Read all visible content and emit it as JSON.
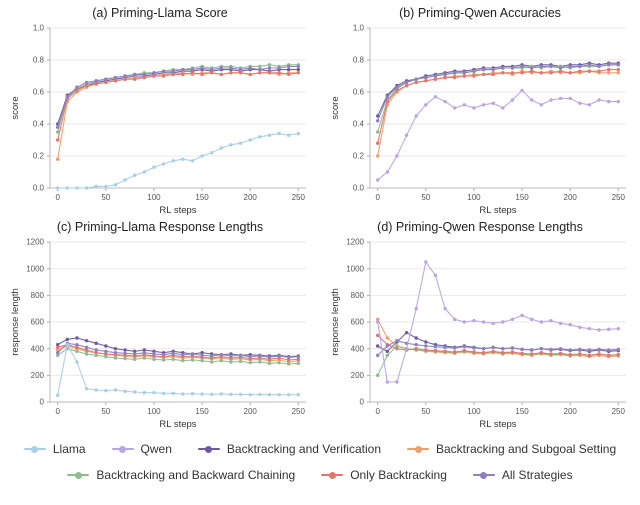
{
  "legend": {
    "items": [
      {
        "label": "Llama",
        "color": "#a8cfe8"
      },
      {
        "label": "Qwen",
        "color": "#b6a6e3"
      },
      {
        "label": "Backtracking and Verification",
        "color": "#6c5b9e"
      },
      {
        "label": "Backtracking and Subgoal Setting",
        "color": "#f09d6b"
      },
      {
        "label": "Backtracking and Backward Chaining",
        "color": "#8fbc8b"
      },
      {
        "label": "Only Backtracking",
        "color": "#e2766c"
      },
      {
        "label": "All Strategies",
        "color": "#8d80c0"
      }
    ]
  },
  "chart_data": [
    {
      "type": "line",
      "title": "(a) Priming-Llama Score",
      "xlabel": "RL steps",
      "ylabel": "score",
      "xlim": [
        -8,
        258
      ],
      "ylim": [
        0,
        1.0
      ],
      "xticks": [
        0,
        50,
        100,
        150,
        200,
        250
      ],
      "yticks": [
        0,
        0.2,
        0.4,
        0.6,
        0.8,
        1.0
      ],
      "ytick_labels": [
        "0.0",
        "0.2",
        "0.4",
        "0.6",
        "0.8",
        "1.0"
      ],
      "x": [
        0,
        10,
        20,
        30,
        40,
        50,
        60,
        70,
        80,
        90,
        100,
        110,
        120,
        130,
        140,
        150,
        160,
        170,
        180,
        190,
        200,
        210,
        220,
        230,
        240,
        250
      ],
      "series": [
        {
          "name": "Backtracking and Verification",
          "color": "#6c5b9e",
          "values": [
            0.4,
            0.58,
            0.62,
            0.64,
            0.66,
            0.67,
            0.68,
            0.69,
            0.7,
            0.7,
            0.71,
            0.72,
            0.72,
            0.73,
            0.73,
            0.74,
            0.73,
            0.74,
            0.74,
            0.73,
            0.74,
            0.74,
            0.73,
            0.74,
            0.74,
            0.74
          ]
        },
        {
          "name": "Backtracking and Subgoal Setting",
          "color": "#f09d6b",
          "values": [
            0.18,
            0.54,
            0.6,
            0.63,
            0.65,
            0.66,
            0.67,
            0.68,
            0.69,
            0.69,
            0.7,
            0.71,
            0.71,
            0.72,
            0.71,
            0.72,
            0.72,
            0.71,
            0.72,
            0.72,
            0.71,
            0.72,
            0.72,
            0.71,
            0.72,
            0.72
          ]
        },
        {
          "name": "Backtracking and Backward Chaining",
          "color": "#8fbc8b",
          "values": [
            0.35,
            0.57,
            0.62,
            0.65,
            0.67,
            0.68,
            0.69,
            0.7,
            0.71,
            0.72,
            0.72,
            0.73,
            0.74,
            0.74,
            0.75,
            0.76,
            0.75,
            0.76,
            0.76,
            0.75,
            0.76,
            0.76,
            0.77,
            0.76,
            0.77,
            0.77
          ]
        },
        {
          "name": "Only Backtracking",
          "color": "#e2766c",
          "values": [
            0.3,
            0.56,
            0.61,
            0.64,
            0.65,
            0.66,
            0.67,
            0.68,
            0.68,
            0.69,
            0.7,
            0.7,
            0.71,
            0.71,
            0.72,
            0.71,
            0.72,
            0.71,
            0.72,
            0.72,
            0.71,
            0.72,
            0.72,
            0.72,
            0.71,
            0.72
          ]
        },
        {
          "name": "All Strategies",
          "color": "#8d80c0",
          "values": [
            0.38,
            0.57,
            0.63,
            0.66,
            0.67,
            0.68,
            0.69,
            0.7,
            0.71,
            0.71,
            0.72,
            0.73,
            0.73,
            0.74,
            0.74,
            0.75,
            0.74,
            0.75,
            0.75,
            0.74,
            0.75,
            0.74,
            0.75,
            0.75,
            0.76,
            0.76
          ]
        },
        {
          "name": "Llama",
          "color": "#a8cfe8",
          "values": [
            0.0,
            0.0,
            0.0,
            0.0,
            0.01,
            0.01,
            0.02,
            0.05,
            0.08,
            0.1,
            0.13,
            0.15,
            0.17,
            0.18,
            0.17,
            0.2,
            0.22,
            0.25,
            0.27,
            0.28,
            0.3,
            0.32,
            0.33,
            0.34,
            0.33,
            0.34
          ]
        }
      ]
    },
    {
      "type": "line",
      "title": "(b) Priming-Qwen Accuracies",
      "xlabel": "RL steps",
      "ylabel": "score",
      "xlim": [
        -8,
        258
      ],
      "ylim": [
        0,
        1.0
      ],
      "xticks": [
        0,
        50,
        100,
        150,
        200,
        250
      ],
      "yticks": [
        0,
        0.2,
        0.4,
        0.6,
        0.8,
        1.0
      ],
      "ytick_labels": [
        "0.0",
        "0.2",
        "0.4",
        "0.6",
        "0.8",
        "1.0"
      ],
      "x": [
        0,
        10,
        20,
        30,
        40,
        50,
        60,
        70,
        80,
        90,
        100,
        110,
        120,
        130,
        140,
        150,
        160,
        170,
        180,
        190,
        200,
        210,
        220,
        230,
        240,
        250
      ],
      "series": [
        {
          "name": "Backtracking and Verification",
          "color": "#6c5b9e",
          "values": [
            0.45,
            0.58,
            0.64,
            0.67,
            0.68,
            0.7,
            0.71,
            0.72,
            0.73,
            0.73,
            0.74,
            0.75,
            0.75,
            0.76,
            0.76,
            0.77,
            0.76,
            0.77,
            0.77,
            0.76,
            0.77,
            0.77,
            0.78,
            0.77,
            0.78,
            0.78
          ]
        },
        {
          "name": "Backtracking and Subgoal Setting",
          "color": "#f09d6b",
          "values": [
            0.2,
            0.52,
            0.6,
            0.64,
            0.66,
            0.67,
            0.68,
            0.69,
            0.7,
            0.7,
            0.71,
            0.71,
            0.72,
            0.72,
            0.71,
            0.73,
            0.72,
            0.72,
            0.73,
            0.72,
            0.72,
            0.72,
            0.73,
            0.72,
            0.72,
            0.72
          ]
        },
        {
          "name": "Backtracking and Backward Chaining",
          "color": "#8fbc8b",
          "values": [
            0.35,
            0.55,
            0.62,
            0.66,
            0.68,
            0.69,
            0.7,
            0.71,
            0.72,
            0.72,
            0.73,
            0.74,
            0.74,
            0.75,
            0.75,
            0.75,
            0.76,
            0.75,
            0.76,
            0.76,
            0.75,
            0.76,
            0.76,
            0.76,
            0.77,
            0.77
          ]
        },
        {
          "name": "Only Backtracking",
          "color": "#e2766c",
          "values": [
            0.28,
            0.54,
            0.61,
            0.64,
            0.66,
            0.67,
            0.68,
            0.69,
            0.69,
            0.7,
            0.7,
            0.71,
            0.71,
            0.72,
            0.72,
            0.72,
            0.73,
            0.72,
            0.72,
            0.73,
            0.72,
            0.73,
            0.73,
            0.73,
            0.74,
            0.74
          ]
        },
        {
          "name": "All Strategies",
          "color": "#8d80c0",
          "values": [
            0.42,
            0.57,
            0.63,
            0.66,
            0.68,
            0.69,
            0.7,
            0.71,
            0.72,
            0.72,
            0.73,
            0.74,
            0.74,
            0.75,
            0.75,
            0.76,
            0.75,
            0.76,
            0.76,
            0.75,
            0.76,
            0.76,
            0.77,
            0.76,
            0.77,
            0.77
          ]
        },
        {
          "name": "Qwen",
          "color": "#b6a6e3",
          "values": [
            0.05,
            0.1,
            0.2,
            0.33,
            0.45,
            0.52,
            0.57,
            0.54,
            0.5,
            0.52,
            0.5,
            0.52,
            0.53,
            0.5,
            0.55,
            0.61,
            0.55,
            0.52,
            0.55,
            0.56,
            0.56,
            0.53,
            0.52,
            0.55,
            0.54,
            0.54
          ]
        }
      ]
    },
    {
      "type": "line",
      "title": "(c) Priming-Llama Response Lengths",
      "xlabel": "RL steps",
      "ylabel": "response length",
      "xlim": [
        -8,
        258
      ],
      "ylim": [
        0,
        1200
      ],
      "xticks": [
        0,
        50,
        100,
        150,
        200,
        250
      ],
      "yticks": [
        0,
        200,
        400,
        600,
        800,
        1000,
        1200
      ],
      "ytick_labels": [
        "0",
        "200",
        "400",
        "600",
        "800",
        "1000",
        "1200"
      ],
      "x": [
        0,
        10,
        20,
        30,
        40,
        50,
        60,
        70,
        80,
        90,
        100,
        110,
        120,
        130,
        140,
        150,
        160,
        170,
        180,
        190,
        200,
        210,
        220,
        230,
        240,
        250
      ],
      "series": [
        {
          "name": "Backtracking and Verification",
          "color": "#6c5b9e",
          "values": [
            430,
            470,
            480,
            460,
            440,
            420,
            400,
            390,
            380,
            390,
            380,
            370,
            380,
            370,
            360,
            370,
            360,
            355,
            360,
            350,
            355,
            350,
            345,
            350,
            340,
            345
          ]
        },
        {
          "name": "Backtracking and Subgoal Setting",
          "color": "#f09d6b",
          "values": [
            390,
            420,
            400,
            380,
            370,
            360,
            350,
            345,
            340,
            345,
            340,
            335,
            340,
            330,
            335,
            330,
            325,
            330,
            320,
            325,
            315,
            320,
            310,
            315,
            300,
            310
          ]
        },
        {
          "name": "Backtracking and Backward Chaining",
          "color": "#8fbc8b",
          "values": [
            350,
            400,
            380,
            360,
            350,
            340,
            330,
            325,
            320,
            330,
            320,
            315,
            320,
            310,
            315,
            310,
            300,
            310,
            300,
            305,
            295,
            300,
            290,
            295,
            285,
            290
          ]
        },
        {
          "name": "Only Backtracking",
          "color": "#e2766c",
          "values": [
            410,
            430,
            410,
            390,
            370,
            360,
            355,
            350,
            345,
            355,
            345,
            340,
            350,
            340,
            345,
            335,
            330,
            340,
            330,
            335,
            325,
            330,
            320,
            330,
            315,
            320
          ]
        },
        {
          "name": "All Strategies",
          "color": "#8d80c0",
          "values": [
            370,
            440,
            430,
            410,
            390,
            380,
            370,
            365,
            360,
            370,
            360,
            355,
            365,
            355,
            360,
            350,
            345,
            355,
            345,
            350,
            340,
            345,
            335,
            345,
            335,
            340
          ]
        },
        {
          "name": "Llama",
          "color": "#a8cfe8",
          "values": [
            50,
            430,
            300,
            100,
            90,
            85,
            90,
            80,
            75,
            70,
            70,
            65,
            65,
            60,
            62,
            60,
            58,
            60,
            58,
            57,
            55,
            56,
            55,
            55,
            54,
            55
          ]
        }
      ]
    },
    {
      "type": "line",
      "title": "(d) Priming-Qwen Response Lengths",
      "xlabel": "RL steps",
      "ylabel": "response length",
      "xlim": [
        -8,
        258
      ],
      "ylim": [
        0,
        1200
      ],
      "xticks": [
        0,
        50,
        100,
        150,
        200,
        250
      ],
      "yticks": [
        0,
        200,
        400,
        600,
        800,
        1000,
        1200
      ],
      "ytick_labels": [
        "0",
        "200",
        "400",
        "600",
        "800",
        "1000",
        "1200"
      ],
      "x": [
        0,
        10,
        20,
        30,
        40,
        50,
        60,
        70,
        80,
        90,
        100,
        110,
        120,
        130,
        140,
        150,
        160,
        170,
        180,
        190,
        200,
        210,
        220,
        230,
        240,
        250
      ],
      "series": [
        {
          "name": "Backtracking and Verification",
          "color": "#6c5b9e",
          "values": [
            420,
            380,
            450,
            520,
            480,
            450,
            430,
            420,
            410,
            420,
            410,
            400,
            410,
            400,
            405,
            395,
            390,
            400,
            390,
            395,
            385,
            390,
            380,
            390,
            380,
            385
          ]
        },
        {
          "name": "Backtracking and Subgoal Setting",
          "color": "#f09d6b",
          "values": [
            620,
            480,
            420,
            400,
            390,
            380,
            375,
            370,
            365,
            375,
            365,
            360,
            370,
            360,
            365,
            355,
            350,
            360,
            350,
            355,
            345,
            350,
            340,
            350,
            340,
            345
          ]
        },
        {
          "name": "Backtracking and Backward Chaining",
          "color": "#8fbc8b",
          "values": [
            200,
            350,
            420,
            400,
            390,
            385,
            380,
            375,
            370,
            380,
            370,
            365,
            375,
            365,
            370,
            360,
            355,
            365,
            355,
            360,
            350,
            360,
            350,
            360,
            350,
            355
          ]
        },
        {
          "name": "Only Backtracking",
          "color": "#e2766c",
          "values": [
            500,
            430,
            400,
            390,
            400,
            390,
            385,
            380,
            375,
            385,
            375,
            370,
            380,
            370,
            375,
            365,
            360,
            370,
            360,
            365,
            355,
            360,
            350,
            360,
            350,
            355
          ]
        },
        {
          "name": "All Strategies",
          "color": "#8d80c0",
          "values": [
            350,
            420,
            460,
            440,
            430,
            420,
            415,
            410,
            405,
            415,
            405,
            400,
            410,
            400,
            405,
            395,
            390,
            400,
            395,
            400,
            390,
            395,
            390,
            395,
            390,
            395
          ]
        },
        {
          "name": "Qwen",
          "color": "#b6a6e3",
          "values": [
            600,
            150,
            150,
            400,
            700,
            1050,
            950,
            700,
            620,
            600,
            610,
            600,
            590,
            600,
            620,
            650,
            620,
            600,
            610,
            590,
            580,
            560,
            550,
            540,
            545,
            550
          ]
        }
      ]
    }
  ]
}
